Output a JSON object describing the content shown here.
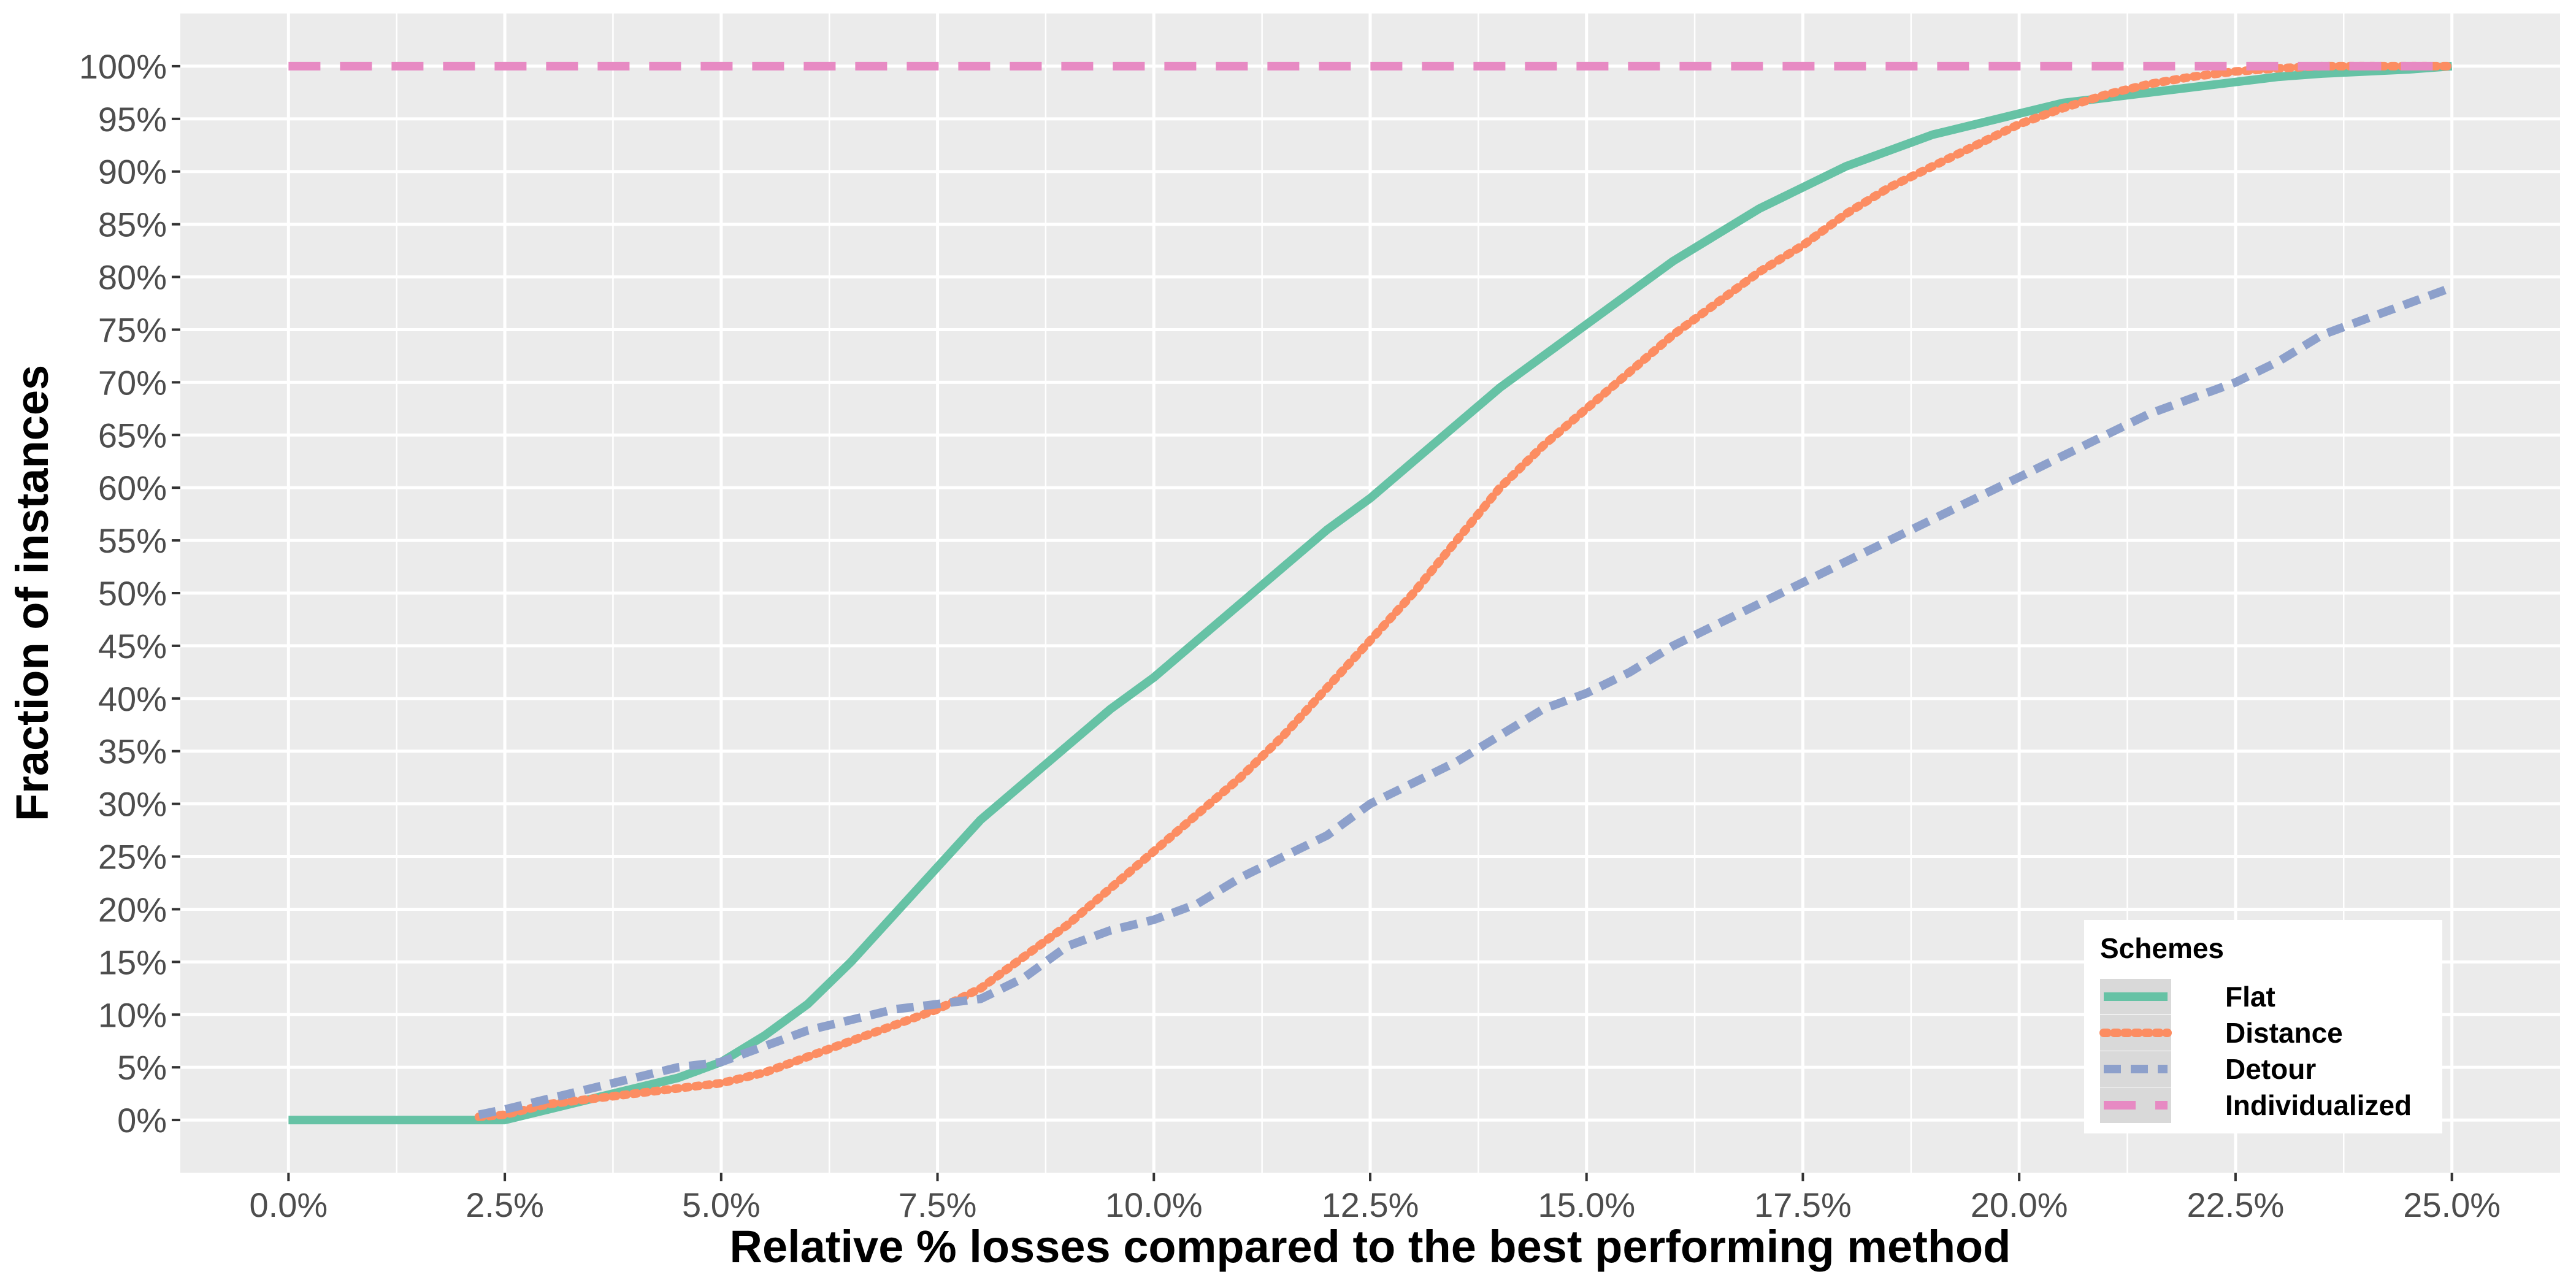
{
  "chart_data": {
    "type": "line",
    "title": "",
    "xlabel": "Relative % losses compared to the best performing method",
    "ylabel": "Fraction of instances",
    "xlim": [
      -1.25,
      26.25
    ],
    "ylim": [
      -5,
      105
    ],
    "x_ticks": [
      0,
      2.5,
      5,
      7.5,
      10,
      12.5,
      15,
      17.5,
      20,
      22.5,
      25
    ],
    "x_tick_labels": [
      "0.0%",
      "2.5%",
      "5.0%",
      "7.5%",
      "10.0%",
      "12.5%",
      "15.0%",
      "17.5%",
      "20.0%",
      "22.5%",
      "25.0%"
    ],
    "y_ticks": [
      0,
      5,
      10,
      15,
      20,
      25,
      30,
      35,
      40,
      45,
      50,
      55,
      60,
      65,
      70,
      75,
      80,
      85,
      90,
      95,
      100
    ],
    "y_tick_labels": [
      "0%",
      "5%",
      "10%",
      "15%",
      "20%",
      "25%",
      "30%",
      "35%",
      "40%",
      "45%",
      "50%",
      "55%",
      "60%",
      "65%",
      "70%",
      "75%",
      "80%",
      "85%",
      "90%",
      "95%",
      "100%"
    ],
    "grid": true,
    "background": "#ebebeb",
    "legend": {
      "title": "Schemes",
      "position": "bottom-right"
    },
    "series": [
      {
        "name": "Flat",
        "color": "#66c2a5",
        "dash": "solid",
        "x": [
          0,
          2.0,
          2.5,
          3.0,
          3.5,
          4.0,
          4.5,
          5.0,
          5.5,
          6.0,
          6.5,
          7.0,
          7.5,
          8.0,
          8.5,
          9.0,
          9.5,
          10.0,
          10.5,
          11.0,
          11.5,
          12.0,
          12.5,
          13.0,
          13.5,
          14.0,
          14.5,
          15.0,
          15.5,
          16.0,
          16.5,
          17.0,
          17.5,
          18.0,
          18.5,
          19.0,
          19.5,
          20.0,
          20.5,
          21.0,
          21.5,
          22.0,
          22.5,
          23.0,
          23.5,
          24.0,
          24.5,
          25.0
        ],
        "y": [
          0,
          0,
          0,
          1,
          2,
          3,
          4,
          5.5,
          8,
          11,
          15,
          19.5,
          24,
          28.5,
          32,
          35.5,
          39,
          42,
          45.5,
          49,
          52.5,
          56,
          59,
          62.5,
          66,
          69.5,
          72.5,
          75.5,
          78.5,
          81.5,
          84,
          86.5,
          88.5,
          90.5,
          92,
          93.5,
          94.5,
          95.5,
          96.5,
          97,
          97.5,
          98,
          98.5,
          99,
          99.3,
          99.5,
          99.7,
          100
        ]
      },
      {
        "name": "Distance",
        "color": "#fc8d62",
        "dash": "dotted",
        "x": [
          2.2,
          2.5,
          3.0,
          3.5,
          4.0,
          4.5,
          5.0,
          5.5,
          6.0,
          6.5,
          7.0,
          7.5,
          8.0,
          8.5,
          9.0,
          9.5,
          10.0,
          10.5,
          11.0,
          11.5,
          12.0,
          12.5,
          13.0,
          13.5,
          14.0,
          14.5,
          15.0,
          15.5,
          16.0,
          16.5,
          17.0,
          17.5,
          18.0,
          18.5,
          19.0,
          19.5,
          20.0,
          20.5,
          21.0,
          21.5,
          22.0,
          22.5,
          23.0,
          23.5,
          24.0,
          25.0
        ],
        "y": [
          0.3,
          0.5,
          1.5,
          2,
          2.5,
          3,
          3.5,
          4.5,
          6,
          7.5,
          9,
          10.5,
          12.5,
          15.5,
          18.5,
          22,
          25.5,
          29,
          32.5,
          36.5,
          41,
          45.5,
          50,
          55,
          60,
          64,
          67.5,
          71,
          74.5,
          77.5,
          80.5,
          83,
          86,
          88.5,
          90.5,
          92.5,
          94.5,
          96,
          97.3,
          98.3,
          99,
          99.5,
          99.8,
          100,
          100,
          100
        ]
      },
      {
        "name": "Detour",
        "color": "#8da0cb",
        "dash": "dashed",
        "x": [
          2.2,
          2.5,
          3.0,
          3.5,
          4.0,
          4.5,
          5.0,
          5.5,
          6.0,
          6.5,
          7.0,
          7.5,
          8.0,
          8.5,
          9.0,
          9.5,
          10.0,
          10.5,
          11.0,
          11.5,
          12.0,
          12.5,
          13.0,
          13.5,
          14.0,
          14.5,
          15.0,
          15.5,
          16.0,
          16.5,
          17.0,
          17.5,
          18.0,
          18.5,
          19.0,
          19.5,
          20.0,
          20.5,
          21.0,
          21.5,
          22.0,
          22.5,
          23.0,
          23.5,
          24.0,
          24.5,
          25.0
        ],
        "y": [
          0.5,
          1,
          2,
          3,
          4,
          5,
          5.5,
          7,
          8.5,
          9.5,
          10.5,
          11,
          11.5,
          13.5,
          16.5,
          18,
          19,
          20.5,
          23,
          25,
          27,
          30,
          32,
          34,
          36.5,
          39,
          40.5,
          42.5,
          45,
          47,
          49,
          51,
          53,
          55,
          57,
          59,
          61,
          63,
          65,
          67,
          68.5,
          70,
          72,
          74.5,
          76,
          77.5,
          79
        ]
      },
      {
        "name": "Individualized",
        "color": "#e78ac3",
        "dash": "longdash",
        "x": [
          0,
          25
        ],
        "y": [
          100,
          100
        ]
      }
    ]
  }
}
